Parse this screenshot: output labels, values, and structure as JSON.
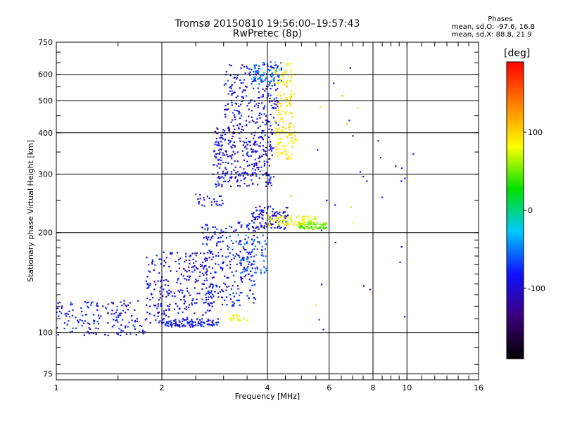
{
  "title_line1": "Tromsø 20150810 19:56:00–19:57:43",
  "title_line2": "RwPretec (8p)",
  "phase_box": {
    "title": "Phases",
    "line1": "mean, sd,O: -97.6, 16.8",
    "line2": "mean, sd,X:  88.8, 21.9"
  },
  "colorbar": {
    "unit": "[deg]",
    "ticks": [
      "100",
      "0",
      "-100"
    ],
    "tick_values": [
      100,
      0,
      -100
    ],
    "range": [
      -190,
      190
    ],
    "colors": [
      "#000000",
      "#3b007a",
      "#1010ff",
      "#00c8ff",
      "#00e000",
      "#ffff00",
      "#ff8000",
      "#ff0000"
    ]
  },
  "chart_data": {
    "type": "scatter",
    "xlabel": "Frequency [MHz]",
    "ylabel": "Stationary phase Virtual Height [km]",
    "xscale": "log",
    "yscale": "log",
    "xlim": [
      1,
      16
    ],
    "ylim": [
      72,
      750
    ],
    "xticks": [
      1,
      2,
      4,
      6,
      8,
      10,
      16
    ],
    "xtick_labels": [
      "1",
      "2",
      "4",
      "6",
      "8",
      "10",
      "16"
    ],
    "yticks": [
      75,
      100,
      200,
      300,
      400,
      500,
      600,
      750
    ],
    "ytick_labels": [
      "75",
      "100",
      "200",
      "300",
      "400",
      "500",
      "600",
      "750"
    ],
    "grid": true,
    "clusters": [
      {
        "f0": 1.0,
        "f1": 1.8,
        "h0": 98,
        "h1": 125,
        "phase": -105,
        "n": 160
      },
      {
        "f0": 1.8,
        "f1": 2.8,
        "h0": 104,
        "h1": 175,
        "phase": -110,
        "n": 280
      },
      {
        "f0": 2.0,
        "f1": 2.9,
        "h0": 104,
        "h1": 110,
        "phase": -100,
        "n": 90
      },
      {
        "f0": 2.6,
        "f1": 3.7,
        "h0": 120,
        "h1": 215,
        "phase": -100,
        "n": 260
      },
      {
        "f0": 3.3,
        "f1": 4.0,
        "h0": 150,
        "h1": 200,
        "phase": -80,
        "n": 70
      },
      {
        "f0": 3.1,
        "f1": 3.5,
        "h0": 108,
        "h1": 113,
        "phase": 90,
        "n": 18
      },
      {
        "f0": 2.8,
        "f1": 4.2,
        "h0": 275,
        "h1": 420,
        "phase": -110,
        "n": 320
      },
      {
        "f0": 3.0,
        "f1": 4.3,
        "h0": 420,
        "h1": 650,
        "phase": -105,
        "n": 220
      },
      {
        "f0": 3.6,
        "f1": 4.4,
        "h0": 560,
        "h1": 655,
        "phase": -70,
        "n": 60
      },
      {
        "f0": 4.2,
        "f1": 4.8,
        "h0": 330,
        "h1": 650,
        "phase": 100,
        "n": 160
      },
      {
        "f0": 3.6,
        "f1": 4.6,
        "h0": 205,
        "h1": 240,
        "phase": -110,
        "n": 110
      },
      {
        "f0": 4.0,
        "f1": 5.5,
        "h0": 210,
        "h1": 225,
        "phase": 90,
        "n": 90
      },
      {
        "f0": 4.9,
        "f1": 5.9,
        "h0": 205,
        "h1": 215,
        "phase": 35,
        "n": 70
      },
      {
        "f0": 2.5,
        "f1": 3.0,
        "h0": 240,
        "h1": 262,
        "phase": -105,
        "n": 25
      },
      {
        "f0": 5.5,
        "f1": 10.5,
        "h0": 100,
        "h1": 660,
        "phase": -110,
        "n": 28
      },
      {
        "f0": 4.5,
        "f1": 8.0,
        "h0": 110,
        "h1": 650,
        "phase": 110,
        "n": 12
      }
    ]
  }
}
